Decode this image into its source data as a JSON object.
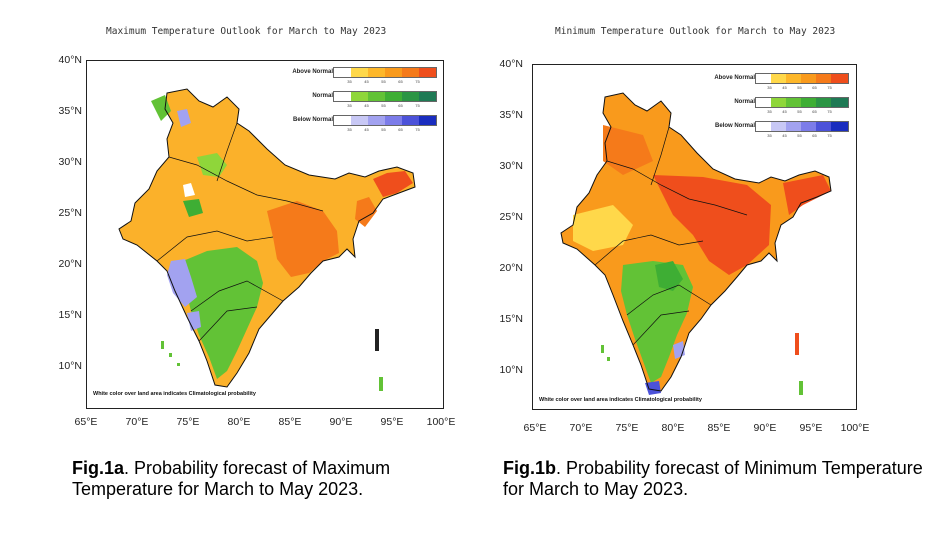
{
  "panels": [
    {
      "id": "fig1a",
      "title": "Maximum Temperature Outlook for March to May 2023",
      "lat_ticks": [
        "40°N",
        "35°N",
        "30°N",
        "25°N",
        "20°N",
        "15°N",
        "10°N"
      ],
      "lon_ticks": [
        "65°E",
        "70°E",
        "75°E",
        "80°E",
        "85°E",
        "90°E",
        "95°E",
        "100°E"
      ],
      "legend": [
        {
          "label": "Above Normal",
          "colors": [
            "#ffffff",
            "#ffd84a",
            "#fdb72a",
            "#f99a1c",
            "#f57a1a",
            "#ef4e1c"
          ],
          "ticks": [
            "35",
            "45",
            "55",
            "65",
            "75"
          ]
        },
        {
          "label": "Normal",
          "colors": [
            "#ffffff",
            "#8fd63a",
            "#62c236",
            "#3eae34",
            "#2b9544",
            "#1f7a55"
          ],
          "ticks": [
            "35",
            "45",
            "55",
            "65",
            "75"
          ]
        },
        {
          "label": "Below Normal",
          "colors": [
            "#ffffff",
            "#c8c8f5",
            "#a2a2f0",
            "#7c7ce9",
            "#4c52d9",
            "#1a2dbf"
          ],
          "ticks": [
            "35",
            "45",
            "55",
            "65",
            "75"
          ]
        }
      ],
      "note": "White color over land area indicates Climatological probability",
      "caption_bold": "Fig.1a",
      "caption_text": ". Probability forecast of Maximum Temperature for March to May 2023."
    },
    {
      "id": "fig1b",
      "title": "Minimum Temperature Outlook for March to May 2023",
      "lat_ticks": [
        "40°N",
        "35°N",
        "30°N",
        "25°N",
        "20°N",
        "15°N",
        "10°N"
      ],
      "lon_ticks": [
        "65°E",
        "70°E",
        "75°E",
        "80°E",
        "85°E",
        "90°E",
        "95°E",
        "100°E"
      ],
      "legend": [
        {
          "label": "Above Normal",
          "colors": [
            "#ffffff",
            "#ffd84a",
            "#fdb72a",
            "#f99a1c",
            "#f57a1a",
            "#ef4e1c"
          ],
          "ticks": [
            "35",
            "45",
            "55",
            "65",
            "75"
          ]
        },
        {
          "label": "Normal",
          "colors": [
            "#ffffff",
            "#8fd63a",
            "#62c236",
            "#3eae34",
            "#2b9544",
            "#1f7a55"
          ],
          "ticks": [
            "35",
            "45",
            "55",
            "65",
            "75"
          ]
        },
        {
          "label": "Below Normal",
          "colors": [
            "#ffffff",
            "#c8c8f5",
            "#a2a2f0",
            "#7c7ce9",
            "#4c52d9",
            "#1a2dbf"
          ],
          "ticks": [
            "35",
            "45",
            "55",
            "65",
            "75"
          ]
        }
      ],
      "note": "White color over land area indicates Climatological probability",
      "caption_bold": "Fig.1b",
      "caption_text": ". Probability forecast of Minimum Temperature for March to May 2023."
    }
  ]
}
